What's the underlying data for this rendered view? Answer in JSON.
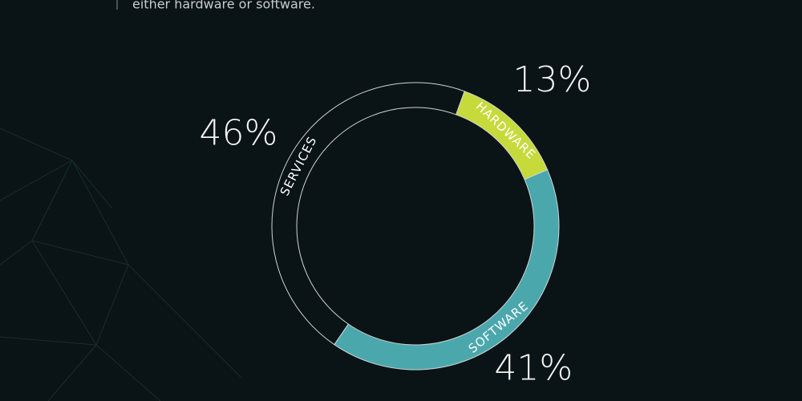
{
  "chart_data": {
    "type": "donut",
    "subtitle": "either hardware or software.",
    "categories": [
      "HARDWARE",
      "SOFTWARE",
      "SERVICES"
    ],
    "values": [
      13,
      41,
      46
    ],
    "value_labels": [
      "13%",
      "41%",
      "46%"
    ],
    "colors": [
      "#c6da3b",
      "#4aa8ad",
      "#0a1315"
    ]
  }
}
